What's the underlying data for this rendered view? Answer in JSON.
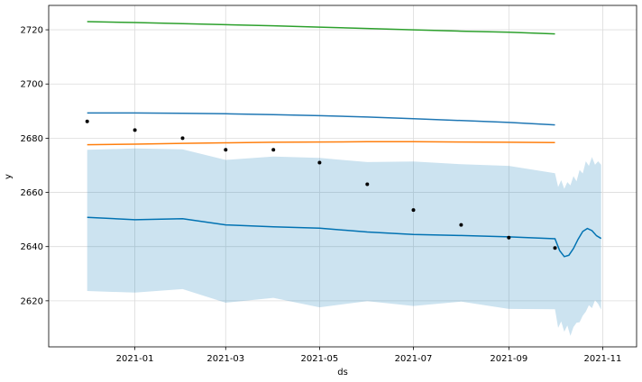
{
  "chart_data": {
    "type": "line",
    "xlabel": "ds",
    "ylabel": "y",
    "grid": true,
    "colors": {
      "forecast": "#0072B2",
      "band": "#0072B2",
      "blue_line": "#1f77b4",
      "orange_line": "#ff7f0e",
      "green_line": "#2ca02c",
      "points": "#000000"
    },
    "x_ticks": [
      "2021-01",
      "2021-03",
      "2021-05",
      "2021-07",
      "2021-09",
      "2021-11"
    ],
    "y_ticks": [
      2620,
      2640,
      2660,
      2680,
      2700,
      2720
    ],
    "xlim": [
      "2020-11-06",
      "2021-11-23"
    ],
    "ylim": [
      2603,
      2729
    ],
    "observed": {
      "x": [
        "2020-12-01",
        "2021-01-01",
        "2021-02-01",
        "2021-03-01",
        "2021-04-01",
        "2021-05-01",
        "2021-06-01",
        "2021-07-01",
        "2021-08-01",
        "2021-09-01",
        "2021-10-01"
      ],
      "y": [
        2686.2,
        2683.0,
        2680.0,
        2675.7,
        2675.7,
        2671.0,
        2663.0,
        2653.5,
        2648.0,
        2643.3,
        2639.5
      ]
    },
    "series": [
      {
        "x": [
          "2020-12-01",
          "2021-01-01",
          "2021-02-01",
          "2021-03-01",
          "2021-04-01",
          "2021-05-01",
          "2021-06-01",
          "2021-07-01",
          "2021-08-01",
          "2021-09-01",
          "2021-10-01"
        ],
        "values": [
          2723.0,
          2722.7,
          2722.3,
          2721.9,
          2721.5,
          2721.0,
          2720.5,
          2720.0,
          2719.5,
          2719.1,
          2718.5
        ]
      },
      {
        "x": [
          "2020-12-01",
          "2021-01-01",
          "2021-02-01",
          "2021-03-01",
          "2021-04-01",
          "2021-05-01",
          "2021-06-01",
          "2021-07-01",
          "2021-08-01",
          "2021-09-01",
          "2021-10-01"
        ],
        "values": [
          2689.3,
          2689.3,
          2689.2,
          2689.0,
          2688.7,
          2688.3,
          2687.8,
          2687.2,
          2686.5,
          2685.8,
          2684.9
        ]
      },
      {
        "x": [
          "2020-12-01",
          "2021-01-01",
          "2021-02-01",
          "2021-03-01",
          "2021-04-01",
          "2021-05-01",
          "2021-06-01",
          "2021-07-01",
          "2021-08-01",
          "2021-09-01",
          "2021-10-01"
        ],
        "values": [
          2677.6,
          2677.8,
          2678.1,
          2678.3,
          2678.5,
          2678.6,
          2678.7,
          2678.7,
          2678.6,
          2678.5,
          2678.4
        ]
      }
    ],
    "forecast": {
      "x": [
        "2020-12-01",
        "2021-01-01",
        "2021-02-01",
        "2021-03-01",
        "2021-04-01",
        "2021-05-01",
        "2021-06-01",
        "2021-07-01",
        "2021-08-01",
        "2021-09-01",
        "2021-10-01",
        "2021-10-04",
        "2021-10-07",
        "2021-10-10",
        "2021-10-13",
        "2021-10-16",
        "2021-10-19",
        "2021-10-22",
        "2021-10-25",
        "2021-10-28",
        "2021-10-31"
      ],
      "y": [
        2650.8,
        2649.9,
        2650.3,
        2648.0,
        2647.3,
        2646.8,
        2645.4,
        2644.5,
        2644.1,
        2643.6,
        2642.9,
        2638.5,
        2636.3,
        2636.8,
        2639.3,
        2642.7,
        2645.6,
        2646.7,
        2645.9,
        2644.0,
        2643.0
      ]
    },
    "band": {
      "x": [
        "2020-12-01",
        "2021-01-01",
        "2021-02-01",
        "2021-03-01",
        "2021-04-01",
        "2021-05-01",
        "2021-06-01",
        "2021-07-01",
        "2021-08-01",
        "2021-09-01",
        "2021-10-01",
        "2021-10-03",
        "2021-10-05",
        "2021-10-07",
        "2021-10-09",
        "2021-10-11",
        "2021-10-13",
        "2021-10-15",
        "2021-10-17",
        "2021-10-19",
        "2021-10-21",
        "2021-10-23",
        "2021-10-25",
        "2021-10-27",
        "2021-10-29",
        "2021-10-31"
      ],
      "upper": [
        2675.7,
        2676.2,
        2675.9,
        2672.0,
        2673.2,
        2672.7,
        2671.2,
        2671.4,
        2670.4,
        2669.8,
        2667.1,
        2662.0,
        2664.5,
        2661.3,
        2663.8,
        2662.6,
        2666.0,
        2664.1,
        2668.3,
        2667.0,
        2671.5,
        2669.8,
        2673.0,
        2670.2,
        2671.5,
        2670.2
      ],
      "lower": [
        2623.6,
        2623.0,
        2624.3,
        2619.3,
        2621.1,
        2617.6,
        2619.9,
        2618.1,
        2619.7,
        2617.0,
        2616.9,
        2610.0,
        2612.4,
        2608.6,
        2610.9,
        2607.1,
        2610.3,
        2611.9,
        2612.1,
        2614.5,
        2616.0,
        2618.4,
        2617.3,
        2620.2,
        2618.9,
        2616.7
      ]
    }
  }
}
